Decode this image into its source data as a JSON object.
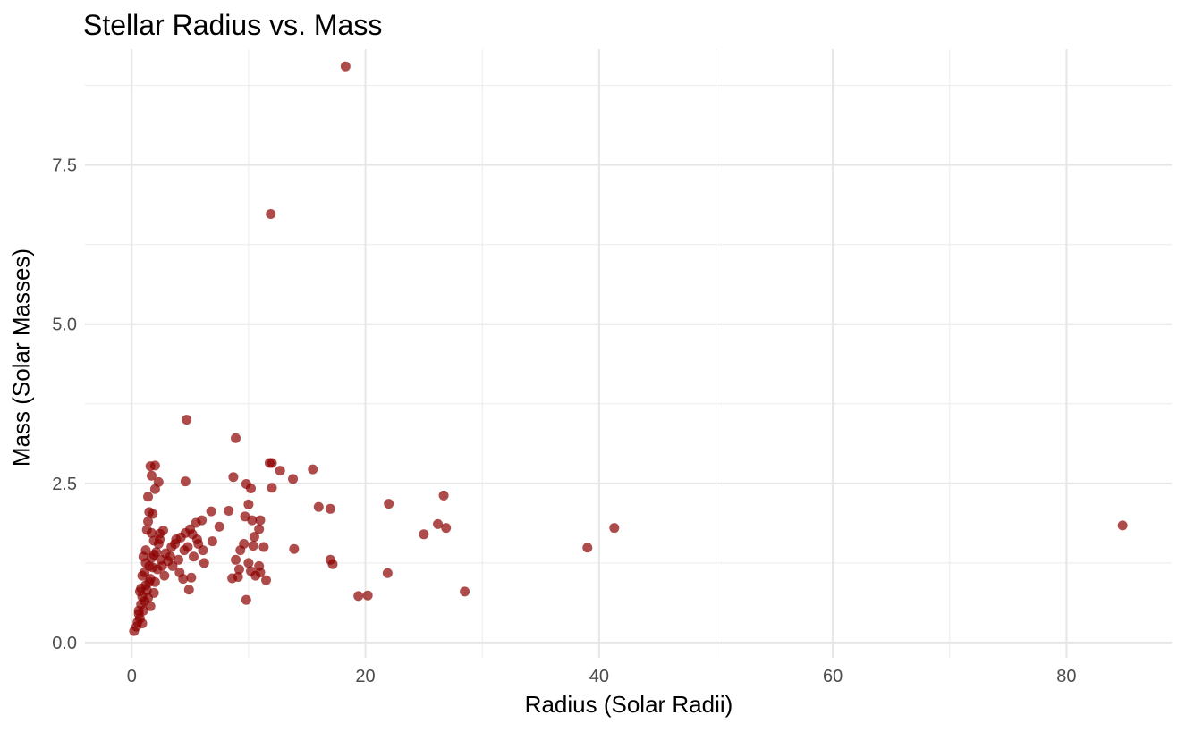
{
  "chart_data": {
    "type": "scatter",
    "title": "Stellar Radius vs. Mass",
    "xlabel": "Radius (Solar Radii)",
    "ylabel": "Mass (Solar Masses)",
    "xlim": [
      -4,
      89
    ],
    "ylim": [
      -0.24,
      9.32
    ],
    "x_ticks": [
      0,
      20,
      40,
      60,
      80
    ],
    "x_tick_labels": [
      "0",
      "20",
      "40",
      "60",
      "80"
    ],
    "y_ticks": [
      0.0,
      2.5,
      5.0,
      7.5
    ],
    "y_tick_labels": [
      "0.0",
      "2.5",
      "5.0",
      "7.5"
    ],
    "grid": true,
    "legend": "none",
    "point_color": "#8b0000",
    "points": [
      {
        "x": 18.3,
        "y": 9.05
      },
      {
        "x": 11.9,
        "y": 6.73
      },
      {
        "x": 4.7,
        "y": 3.5
      },
      {
        "x": 8.9,
        "y": 3.21
      },
      {
        "x": 1.6,
        "y": 2.77
      },
      {
        "x": 2.0,
        "y": 2.78
      },
      {
        "x": 12.0,
        "y": 2.82
      },
      {
        "x": 11.8,
        "y": 2.82
      },
      {
        "x": 12.7,
        "y": 2.7
      },
      {
        "x": 15.5,
        "y": 2.72
      },
      {
        "x": 1.7,
        "y": 2.62
      },
      {
        "x": 2.3,
        "y": 2.52
      },
      {
        "x": 4.6,
        "y": 2.53
      },
      {
        "x": 8.7,
        "y": 2.6
      },
      {
        "x": 13.8,
        "y": 2.57
      },
      {
        "x": 9.8,
        "y": 2.49
      },
      {
        "x": 10.2,
        "y": 2.42
      },
      {
        "x": 12.0,
        "y": 2.43
      },
      {
        "x": 2.0,
        "y": 2.41
      },
      {
        "x": 1.4,
        "y": 2.29
      },
      {
        "x": 26.7,
        "y": 2.31
      },
      {
        "x": 22.0,
        "y": 2.18
      },
      {
        "x": 16.0,
        "y": 2.13
      },
      {
        "x": 17.0,
        "y": 2.1
      },
      {
        "x": 10.0,
        "y": 2.17
      },
      {
        "x": 6.8,
        "y": 2.06
      },
      {
        "x": 8.3,
        "y": 2.07
      },
      {
        "x": 1.5,
        "y": 2.05
      },
      {
        "x": 1.8,
        "y": 2.02
      },
      {
        "x": 9.7,
        "y": 1.98
      },
      {
        "x": 10.3,
        "y": 1.92
      },
      {
        "x": 11.0,
        "y": 1.92
      },
      {
        "x": 6.0,
        "y": 1.92
      },
      {
        "x": 5.5,
        "y": 1.88
      },
      {
        "x": 26.2,
        "y": 1.86
      },
      {
        "x": 26.9,
        "y": 1.8
      },
      {
        "x": 41.3,
        "y": 1.8
      },
      {
        "x": 84.8,
        "y": 1.84
      },
      {
        "x": 7.5,
        "y": 1.82
      },
      {
        "x": 25.0,
        "y": 1.7
      },
      {
        "x": 5.0,
        "y": 1.78
      },
      {
        "x": 4.6,
        "y": 1.72
      },
      {
        "x": 10.9,
        "y": 1.78
      },
      {
        "x": 10.5,
        "y": 1.66
      },
      {
        "x": 2.7,
        "y": 1.76
      },
      {
        "x": 2.4,
        "y": 1.71
      },
      {
        "x": 1.3,
        "y": 1.77
      },
      {
        "x": 4.2,
        "y": 1.65
      },
      {
        "x": 5.6,
        "y": 1.62
      },
      {
        "x": 3.8,
        "y": 1.62
      },
      {
        "x": 6.9,
        "y": 1.59
      },
      {
        "x": 9.6,
        "y": 1.55
      },
      {
        "x": 10.4,
        "y": 1.52
      },
      {
        "x": 11.3,
        "y": 1.5
      },
      {
        "x": 13.9,
        "y": 1.47
      },
      {
        "x": 39.0,
        "y": 1.49
      },
      {
        "x": 9.3,
        "y": 1.45
      },
      {
        "x": 6.1,
        "y": 1.45
      },
      {
        "x": 4.5,
        "y": 1.45
      },
      {
        "x": 3.4,
        "y": 1.5
      },
      {
        "x": 2.9,
        "y": 1.4
      },
      {
        "x": 1.2,
        "y": 1.45
      },
      {
        "x": 1.9,
        "y": 1.6
      },
      {
        "x": 2.3,
        "y": 1.55
      },
      {
        "x": 1.0,
        "y": 1.35
      },
      {
        "x": 1.7,
        "y": 1.33
      },
      {
        "x": 2.5,
        "y": 1.3
      },
      {
        "x": 3.1,
        "y": 1.28
      },
      {
        "x": 4.0,
        "y": 1.3
      },
      {
        "x": 5.3,
        "y": 1.35
      },
      {
        "x": 6.2,
        "y": 1.25
      },
      {
        "x": 8.9,
        "y": 1.3
      },
      {
        "x": 10.0,
        "y": 1.25
      },
      {
        "x": 10.9,
        "y": 1.2
      },
      {
        "x": 17.0,
        "y": 1.3
      },
      {
        "x": 17.2,
        "y": 1.23
      },
      {
        "x": 9.2,
        "y": 1.15
      },
      {
        "x": 10.2,
        "y": 1.12
      },
      {
        "x": 11.0,
        "y": 1.1
      },
      {
        "x": 3.5,
        "y": 1.2
      },
      {
        "x": 2.2,
        "y": 1.15
      },
      {
        "x": 1.5,
        "y": 1.2
      },
      {
        "x": 1.1,
        "y": 1.1
      },
      {
        "x": 0.9,
        "y": 1.05
      },
      {
        "x": 1.6,
        "y": 1.0
      },
      {
        "x": 2.0,
        "y": 0.95
      },
      {
        "x": 4.4,
        "y": 1.0
      },
      {
        "x": 5.1,
        "y": 1.02
      },
      {
        "x": 8.6,
        "y": 1.01
      },
      {
        "x": 9.1,
        "y": 1.03
      },
      {
        "x": 10.6,
        "y": 1.05
      },
      {
        "x": 11.5,
        "y": 0.98
      },
      {
        "x": 21.9,
        "y": 1.09
      },
      {
        "x": 1.2,
        "y": 0.9
      },
      {
        "x": 0.8,
        "y": 0.85
      },
      {
        "x": 4.9,
        "y": 0.83
      },
      {
        "x": 1.9,
        "y": 0.78
      },
      {
        "x": 1.4,
        "y": 0.7
      },
      {
        "x": 0.9,
        "y": 0.72
      },
      {
        "x": 19.4,
        "y": 0.73
      },
      {
        "x": 20.2,
        "y": 0.74
      },
      {
        "x": 28.5,
        "y": 0.8
      },
      {
        "x": 9.8,
        "y": 0.67
      },
      {
        "x": 1.6,
        "y": 0.57
      },
      {
        "x": 0.8,
        "y": 0.6
      },
      {
        "x": 1.0,
        "y": 0.5
      },
      {
        "x": 0.6,
        "y": 0.45
      },
      {
        "x": 0.7,
        "y": 0.38
      },
      {
        "x": 0.5,
        "y": 0.32
      },
      {
        "x": 0.9,
        "y": 0.3
      },
      {
        "x": 0.4,
        "y": 0.25
      },
      {
        "x": 0.2,
        "y": 0.18
      },
      {
        "x": 0.6,
        "y": 0.5
      },
      {
        "x": 1.1,
        "y": 0.65
      },
      {
        "x": 1.3,
        "y": 0.82
      },
      {
        "x": 1.5,
        "y": 0.95
      },
      {
        "x": 1.8,
        "y": 1.18
      },
      {
        "x": 2.1,
        "y": 1.42
      },
      {
        "x": 2.6,
        "y": 1.2
      },
      {
        "x": 2.8,
        "y": 1.05
      },
      {
        "x": 3.3,
        "y": 1.35
      },
      {
        "x": 3.7,
        "y": 1.55
      },
      {
        "x": 4.1,
        "y": 1.1
      },
      {
        "x": 4.8,
        "y": 1.5
      },
      {
        "x": 5.2,
        "y": 1.7
      },
      {
        "x": 5.7,
        "y": 1.55
      },
      {
        "x": 1.4,
        "y": 1.9
      },
      {
        "x": 1.7,
        "y": 1.72
      },
      {
        "x": 2.4,
        "y": 1.62
      },
      {
        "x": 0.7,
        "y": 0.8
      },
      {
        "x": 1.2,
        "y": 1.25
      },
      {
        "x": 1.9,
        "y": 1.38
      }
    ]
  }
}
